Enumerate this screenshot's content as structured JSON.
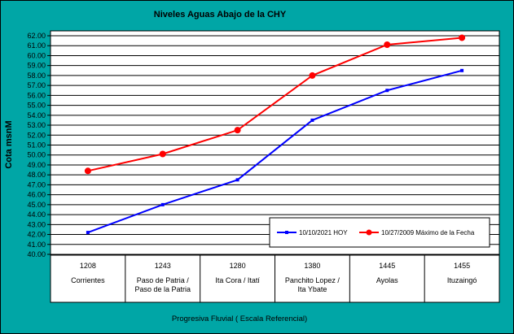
{
  "chart_data": {
    "type": "line",
    "title": "Niveles Aguas Abajo de la CHY",
    "ylabel": "Cota msnM",
    "xlabel": "Progresiva Fluvial ( Escala Referencial)",
    "ylim": [
      40.0,
      62.0
    ],
    "ytick_step": 1.0,
    "grid": "horizontal",
    "legend_position": "bottom-right",
    "categories": [
      {
        "code": "1208",
        "name": [
          "Corrientes"
        ]
      },
      {
        "code": "1243",
        "name": [
          "Paso de Patria /",
          "Paso de la Patria"
        ]
      },
      {
        "code": "1280",
        "name": [
          "Ita Cora / Itatí"
        ]
      },
      {
        "code": "1380",
        "name": [
          "Panchito Lopez /",
          "Ita Ybate"
        ]
      },
      {
        "code": "1445",
        "name": [
          "Ayolas"
        ]
      },
      {
        "code": "1455",
        "name": [
          "Ituzaingó"
        ]
      }
    ],
    "series": [
      {
        "name": "10/10/2021 HOY",
        "color": "#0000ff",
        "marker": "square",
        "values": [
          42.2,
          45.0,
          47.5,
          53.5,
          56.5,
          58.5
        ]
      },
      {
        "name": "10/27/2009 Máximo de la Fecha",
        "color": "#ff0000",
        "marker": "circle",
        "values": [
          48.4,
          50.1,
          52.5,
          58.0,
          61.1,
          61.8
        ]
      }
    ],
    "colors": {
      "background": "#00a6a6",
      "plot_area": "#ffffff",
      "axis": "#000000"
    }
  }
}
